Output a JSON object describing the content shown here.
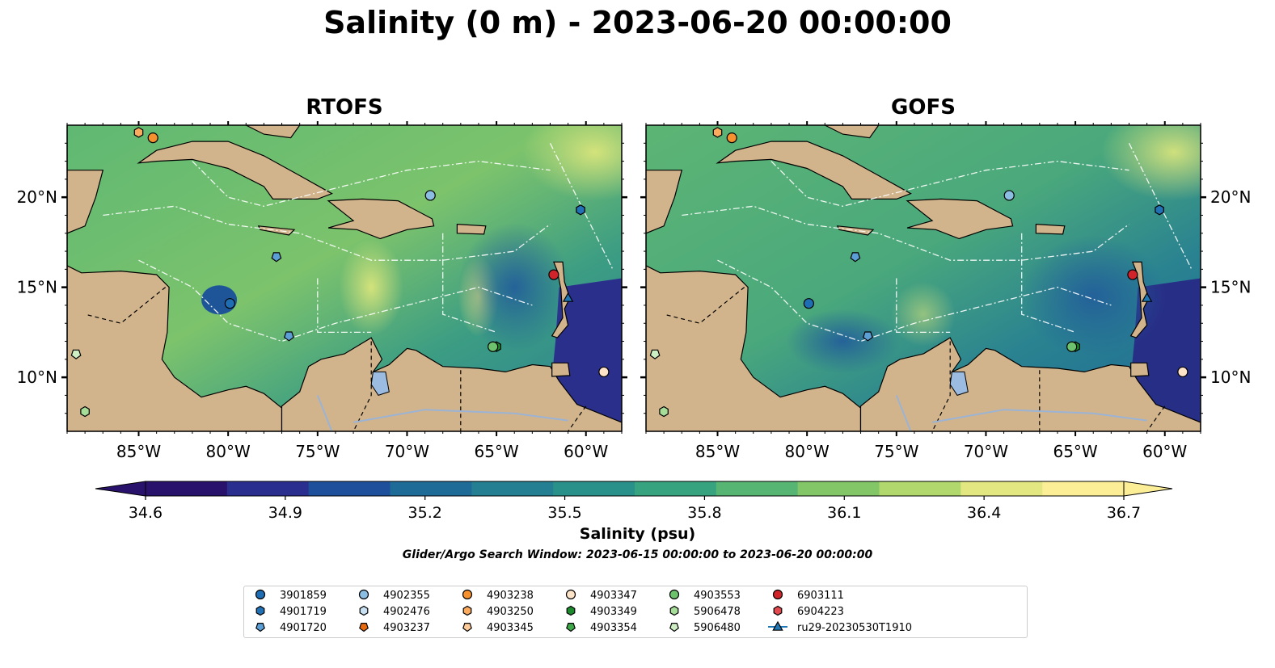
{
  "title": "Salinity (0 m) - 2023-06-20 00:00:00",
  "panels": [
    {
      "title": "RTOFS"
    },
    {
      "title": "GOFS"
    }
  ],
  "axes": {
    "lon_ticks": [
      "85°W",
      "80°W",
      "75°W",
      "70°W",
      "65°W",
      "60°W"
    ],
    "lat_ticks": [
      "20°N",
      "15°N",
      "10°N"
    ],
    "lon_range": [
      -89,
      -58
    ],
    "lat_range": [
      7,
      24
    ]
  },
  "colorbar": {
    "label": "Salinity (psu)",
    "ticks": [
      "34.6",
      "34.9",
      "35.2",
      "35.5",
      "35.8",
      "36.1",
      "36.4",
      "36.7"
    ],
    "vmin": 34.6,
    "vmax": 36.7,
    "colormap": [
      "#29126b",
      "#2a2f8f",
      "#1d4f9a",
      "#1e6b97",
      "#237f91",
      "#2a918a",
      "#38a47f",
      "#57b574",
      "#83c667",
      "#b0d86c",
      "#e3e781",
      "#fbee97"
    ]
  },
  "search_window": "Glider/Argo Search Window: 2023-06-15 00:00:00 to 2023-06-20 00:00:00",
  "legend": [
    {
      "id": "3901859",
      "marker": "circle",
      "color": "#1f6eb4"
    },
    {
      "id": "4901719",
      "marker": "hexagon",
      "color": "#2271b5"
    },
    {
      "id": "4901720",
      "marker": "pentagon",
      "color": "#5b9fd6"
    },
    {
      "id": "4902355",
      "marker": "circle",
      "color": "#8cbde3"
    },
    {
      "id": "4902476",
      "marker": "hexagon",
      "color": "#c8e0f2"
    },
    {
      "id": "4903237",
      "marker": "pentagon",
      "color": "#e66a10"
    },
    {
      "id": "4903238",
      "marker": "circle",
      "color": "#f5912f"
    },
    {
      "id": "4903250",
      "marker": "hexagon",
      "color": "#fbab5e"
    },
    {
      "id": "4903345",
      "marker": "pentagon",
      "color": "#fccb99"
    },
    {
      "id": "4903347",
      "marker": "circle",
      "color": "#fde3c8"
    },
    {
      "id": "4903349",
      "marker": "hexagon",
      "color": "#1e8a2e"
    },
    {
      "id": "4903354",
      "marker": "pentagon",
      "color": "#3ea84a"
    },
    {
      "id": "4903553",
      "marker": "circle",
      "color": "#6cc26d"
    },
    {
      "id": "5906478",
      "marker": "hexagon",
      "color": "#a5dd99"
    },
    {
      "id": "5906480",
      "marker": "pentagon",
      "color": "#cdeec3"
    },
    {
      "id": "6903111",
      "marker": "circle",
      "color": "#d0242a"
    },
    {
      "id": "6904223",
      "marker": "hexagon",
      "color": "#e24a50"
    },
    {
      "id": "ru29-20230530T1910",
      "marker": "triangle-line",
      "color": "#1f77b4"
    }
  ],
  "platforms": [
    {
      "id": "3901859",
      "lon": -79.9,
      "lat": 14.1
    },
    {
      "id": "4901719",
      "lon": -60.3,
      "lat": 19.3
    },
    {
      "id": "4901720",
      "lon": -77.3,
      "lat": 16.7
    },
    {
      "id": "4902355",
      "lon": -68.7,
      "lat": 20.1
    },
    {
      "id": "4903238",
      "lon": -84.2,
      "lat": 23.3
    },
    {
      "id": "4903250",
      "lon": -85.0,
      "lat": 23.6
    },
    {
      "id": "4903349",
      "lon": -65.0,
      "lat": 11.7
    },
    {
      "id": "4903553",
      "lon": -65.2,
      "lat": 11.7
    },
    {
      "id": "5906478",
      "lon": -88.0,
      "lat": 8.1
    },
    {
      "id": "5906480",
      "lon": -88.5,
      "lat": 11.3
    },
    {
      "id": "4901720b",
      "lon": -76.6,
      "lat": 12.3
    },
    {
      "id": "4903347",
      "lon": -59.0,
      "lat": 10.3
    },
    {
      "id": "6903111",
      "lon": -61.8,
      "lat": 15.7
    },
    {
      "id": "ru29-20230530T1910",
      "lon": -61.0,
      "lat": 14.4
    }
  ]
}
